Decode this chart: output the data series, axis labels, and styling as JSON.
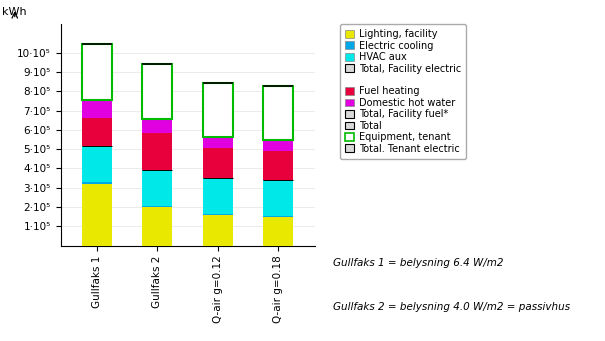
{
  "categories": [
    "Gullfaks 1",
    "Gullfaks 2",
    "Q-air g=0.12",
    "Q-air g=0.18"
  ],
  "lighting_facility": [
    320000,
    200000,
    160000,
    150000
  ],
  "electric_cooling": [
    10000,
    5000,
    5000,
    5000
  ],
  "hvac_aux": [
    185000,
    185000,
    185000,
    185000
  ],
  "fuel_heating": [
    145000,
    195000,
    155000,
    150000
  ],
  "domestic_hot_water": [
    95000,
    70000,
    60000,
    60000
  ],
  "equipment_tenant": [
    290000,
    285000,
    280000,
    280000
  ],
  "colors": {
    "lighting_facility": "#e8e800",
    "electric_cooling": "#00a8e8",
    "hvac_aux": "#00e8e8",
    "fuel_heating": "#e8003c",
    "domestic_hot_water": "#e000e0",
    "equipment_tenant": "#ffffff"
  },
  "ylabel": "kWh",
  "ylim": [
    0,
    1150000
  ],
  "yticks": [
    100000,
    200000,
    300000,
    400000,
    500000,
    600000,
    700000,
    800000,
    900000,
    1000000
  ],
  "ytick_labels": [
    "1·10⁵",
    "2·10⁵",
    "3·10⁵",
    "4·10⁵",
    "5·10⁵",
    "6·10⁵",
    "7·10⁵",
    "8·10⁵",
    "9·10⁵",
    "10·10⁵"
  ],
  "annotation1": "Gullfaks 1 = belysning 6.4 W/m2",
  "annotation2": "Gullfaks 2 = belysning 4.0 W/m2 = passivhus",
  "bg_color": "#ffffff",
  "legend_border_color": "#aaaaaa",
  "grid_color": "#e8e8e8"
}
